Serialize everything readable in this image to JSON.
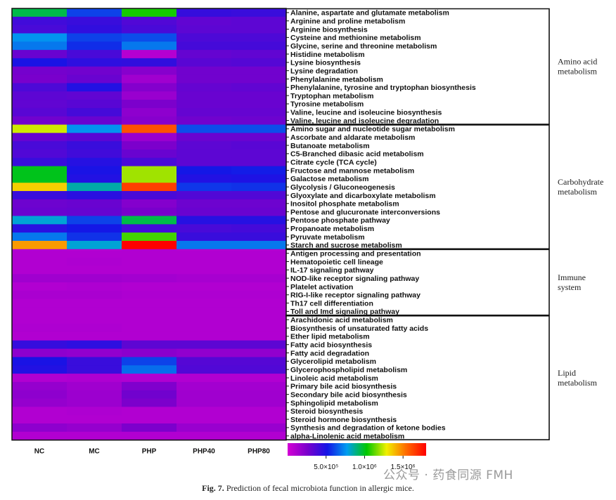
{
  "chart_data": {
    "type": "heatmap",
    "columns": [
      "NC",
      "MC",
      "PHP",
      "PHP40",
      "PHP80"
    ],
    "rows": [
      "Alanine, aspartate and glutamate metabolism",
      "Arginine and proline metabolism",
      "Arginine biosynthesis",
      "Cysteine and methionine metabolism",
      "Glycine, serine and threonine metabolism",
      "Histidine metabolism",
      "Lysine biosynthesis",
      "Lysine degradation",
      "Phenylalanine metabolism",
      "Phenylalanine, tyrosine and tryptophan biosynthesis",
      "Tryptophan metabolism",
      "Tyrosine metabolism",
      "Valine, leucine and isoleucine biosynthesis",
      "Valine, leucine and isoleucine degradation",
      "Amino sugar and nucleotide sugar metabolism",
      "Ascorbate and aldarate metabolism",
      "Butanoate metabolism",
      "C5-Branched dibasic acid metabolism",
      "Citrate cycle (TCA cycle)",
      "Fructose and mannose metabolism",
      "Galactose metabolism",
      "Glycolysis / Gluconeogenesis",
      "Glyoxylate and dicarboxylate metabolism",
      "Inositol phosphate metabolism",
      "Pentose and glucuronate interconversions",
      "Pentose phosphate pathway",
      "Propanoate metabolism",
      "Pyruvate metabolism",
      "Starch and sucrose metabolism",
      "Antigen processing and presentation",
      "Hematopoietic cell lineage",
      "IL-17 signaling pathway",
      "NOD-like receptor signaling pathway",
      "Platelet activation",
      "RIG-I-like receptor signaling pathway",
      "Th17 cell differentiation",
      "Toll and Imd signaling pathway",
      "Arachidonic acid metabolism",
      "Biosynthesis of unsaturated fatty acids",
      "Ether lipid metabolism",
      "Fatty acid biosynthesis",
      "Fatty acid degradation",
      "Glycerolipid metabolism",
      "Glycerophospholipid metabolism",
      "Linoleic acid metabolism",
      "Primary bile acid biosynthesis",
      "Secondary bile acid biosynthesis",
      "Sphingolipid metabolism",
      "Steroid biosynthesis",
      "Steroid hormone biosynthesis",
      "Synthesis and degradation of ketone bodies",
      "alpha-Linolenic acid metabolism"
    ],
    "values": [
      [
        950000,
        600000,
        1050000,
        430000,
        420000
      ],
      [
        400000,
        420000,
        360000,
        320000,
        330000
      ],
      [
        380000,
        440000,
        380000,
        330000,
        330000
      ],
      [
        750000,
        600000,
        620000,
        370000,
        370000
      ],
      [
        700000,
        560000,
        700000,
        390000,
        390000
      ],
      [
        300000,
        380000,
        90000,
        310000,
        320000
      ],
      [
        500000,
        450000,
        440000,
        340000,
        350000
      ],
      [
        270000,
        280000,
        220000,
        280000,
        280000
      ],
      [
        260000,
        300000,
        150000,
        280000,
        280000
      ],
      [
        370000,
        480000,
        230000,
        310000,
        320000
      ],
      [
        330000,
        320000,
        170000,
        300000,
        300000
      ],
      [
        320000,
        340000,
        250000,
        300000,
        300000
      ],
      [
        340000,
        390000,
        200000,
        310000,
        310000
      ],
      [
        280000,
        300000,
        220000,
        280000,
        290000
      ],
      [
        1250000,
        750000,
        1600000,
        620000,
        620000
      ],
      [
        310000,
        340000,
        170000,
        300000,
        300000
      ],
      [
        380000,
        420000,
        250000,
        330000,
        340000
      ],
      [
        360000,
        400000,
        300000,
        330000,
        330000
      ],
      [
        420000,
        470000,
        380000,
        330000,
        330000
      ],
      [
        1000000,
        500000,
        1200000,
        520000,
        530000
      ],
      [
        1000000,
        480000,
        1200000,
        480000,
        490000
      ],
      [
        1350000,
        850000,
        1650000,
        580000,
        570000
      ],
      [
        420000,
        460000,
        380000,
        360000,
        360000
      ],
      [
        290000,
        300000,
        230000,
        290000,
        290000
      ],
      [
        300000,
        310000,
        260000,
        300000,
        300000
      ],
      [
        800000,
        600000,
        950000,
        470000,
        470000
      ],
      [
        460000,
        520000,
        390000,
        380000,
        390000
      ],
      [
        700000,
        570000,
        1100000,
        420000,
        420000
      ],
      [
        1450000,
        800000,
        1800000,
        700000,
        700000
      ],
      [
        100000,
        100000,
        100000,
        100000,
        100000
      ],
      [
        100000,
        110000,
        100000,
        100000,
        100000
      ],
      [
        100000,
        100000,
        100000,
        100000,
        100000
      ],
      [
        150000,
        150000,
        140000,
        130000,
        130000
      ],
      [
        100000,
        110000,
        100000,
        100000,
        100000
      ],
      [
        120000,
        120000,
        110000,
        110000,
        110000
      ],
      [
        100000,
        100000,
        100000,
        100000,
        100000
      ],
      [
        100000,
        100000,
        100000,
        100000,
        100000
      ],
      [
        100000,
        100000,
        100000,
        100000,
        100000
      ],
      [
        110000,
        110000,
        100000,
        100000,
        100000
      ],
      [
        100000,
        100000,
        100000,
        100000,
        100000
      ],
      [
        430000,
        450000,
        330000,
        330000,
        330000
      ],
      [
        200000,
        190000,
        210000,
        190000,
        190000
      ],
      [
        500000,
        420000,
        600000,
        350000,
        350000
      ],
      [
        480000,
        420000,
        680000,
        360000,
        360000
      ],
      [
        100000,
        110000,
        100000,
        100000,
        100000
      ],
      [
        180000,
        150000,
        240000,
        140000,
        140000
      ],
      [
        200000,
        160000,
        280000,
        150000,
        150000
      ],
      [
        180000,
        160000,
        250000,
        150000,
        150000
      ],
      [
        100000,
        110000,
        100000,
        100000,
        100000
      ],
      [
        100000,
        100000,
        100000,
        100000,
        100000
      ],
      [
        200000,
        180000,
        250000,
        170000,
        170000
      ],
      [
        100000,
        100000,
        100000,
        100000,
        100000
      ]
    ],
    "groups": [
      {
        "name": "Amino acid metabolism",
        "lines": [
          "Amino acid",
          "metabolism"
        ],
        "start": 0,
        "end": 13
      },
      {
        "name": "Carbohydrate metabolism",
        "lines": [
          "Carbohydrate",
          "metabolism"
        ],
        "start": 14,
        "end": 28
      },
      {
        "name": "Immune system",
        "lines": [
          "Immune",
          "system"
        ],
        "start": 29,
        "end": 36
      },
      {
        "name": "Lipid metabolism",
        "lines": [
          "Lipid",
          "metabolism"
        ],
        "start": 37,
        "end": 51
      }
    ],
    "color_scale": {
      "min": 0,
      "max": 1800000,
      "stops": [
        "#d400d4",
        "#7a00cc",
        "#1414e6",
        "#009ef0",
        "#00c800",
        "#f0f000",
        "#ff6a00",
        "#ff0000"
      ],
      "ticks": [
        {
          "value": 500000,
          "label": "5.0×10⁵"
        },
        {
          "value": 1000000,
          "label": "1.0×10⁶"
        },
        {
          "value": 1500000,
          "label": "1.5×10⁶"
        }
      ]
    }
  },
  "caption": {
    "figure_label": "Fig. 7.",
    "text": "Prediction of fecal microbiota function in allergic mice."
  },
  "watermark": {
    "text": "公众号 · 药食同源 FMH"
  }
}
